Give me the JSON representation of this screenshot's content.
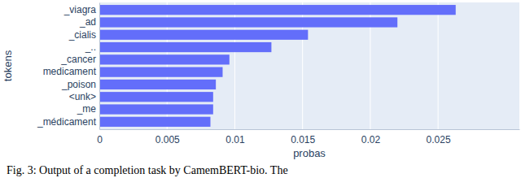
{
  "chart_data": {
    "type": "bar",
    "orientation": "horizontal",
    "categories": [
      "_viagra",
      "_ad",
      "_cialis",
      "_..",
      "_cancer",
      "medicament",
      "_poison",
      "<unk>",
      "_me",
      "_médicament"
    ],
    "values": [
      0.0263,
      0.022,
      0.0154,
      0.0127,
      0.0096,
      0.0091,
      0.0086,
      0.0084,
      0.0084,
      0.0082
    ],
    "color": "#636efa",
    "xlabel": "probas",
    "ylabel": "tokens",
    "xlim": [
      0,
      0.031
    ],
    "xticks": [
      0,
      0.005,
      0.01,
      0.015,
      0.02,
      0.025
    ],
    "grid": true,
    "annotations": [
      "Fig. 3: Output of a completion task by CamemBERT-bio. The"
    ]
  }
}
